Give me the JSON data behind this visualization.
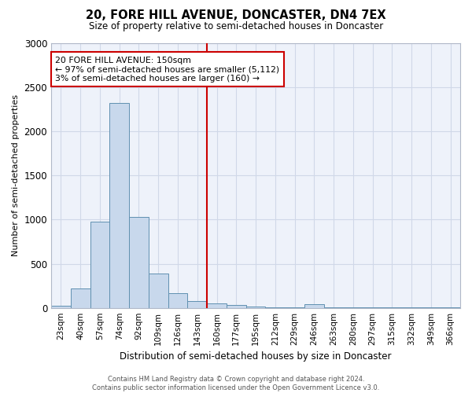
{
  "title": "20, FORE HILL AVENUE, DONCASTER, DN4 7EX",
  "subtitle": "Size of property relative to semi-detached houses in Doncaster",
  "xlabel": "Distribution of semi-detached houses by size in Doncaster",
  "ylabel": "Number of semi-detached properties",
  "categories": [
    "23sqm",
    "40sqm",
    "57sqm",
    "74sqm",
    "92sqm",
    "109sqm",
    "126sqm",
    "143sqm",
    "160sqm",
    "177sqm",
    "195sqm",
    "212sqm",
    "229sqm",
    "246sqm",
    "263sqm",
    "280sqm",
    "297sqm",
    "315sqm",
    "332sqm",
    "349sqm",
    "366sqm"
  ],
  "bar_heights": [
    20,
    220,
    975,
    2320,
    1030,
    390,
    165,
    80,
    55,
    35,
    15,
    10,
    5,
    40,
    5,
    5,
    5,
    5,
    5,
    5,
    5
  ],
  "bar_color": "#c8d8ec",
  "bar_edge_color": "#6090b0",
  "grid_color": "#d0d8e8",
  "background_color": "#eef2fa",
  "vline_color": "#cc0000",
  "annotation_text": "20 FORE HILL AVENUE: 150sqm\n← 97% of semi-detached houses are smaller (5,112)\n3% of semi-detached houses are larger (160) →",
  "annotation_box_color": "#ffffff",
  "annotation_box_edge": "#cc0000",
  "ylim": [
    0,
    3000
  ],
  "yticks": [
    0,
    500,
    1000,
    1500,
    2000,
    2500,
    3000
  ],
  "footer_line1": "Contains HM Land Registry data © Crown copyright and database right 2024.",
  "footer_line2": "Contains public sector information licensed under the Open Government Licence v3.0."
}
